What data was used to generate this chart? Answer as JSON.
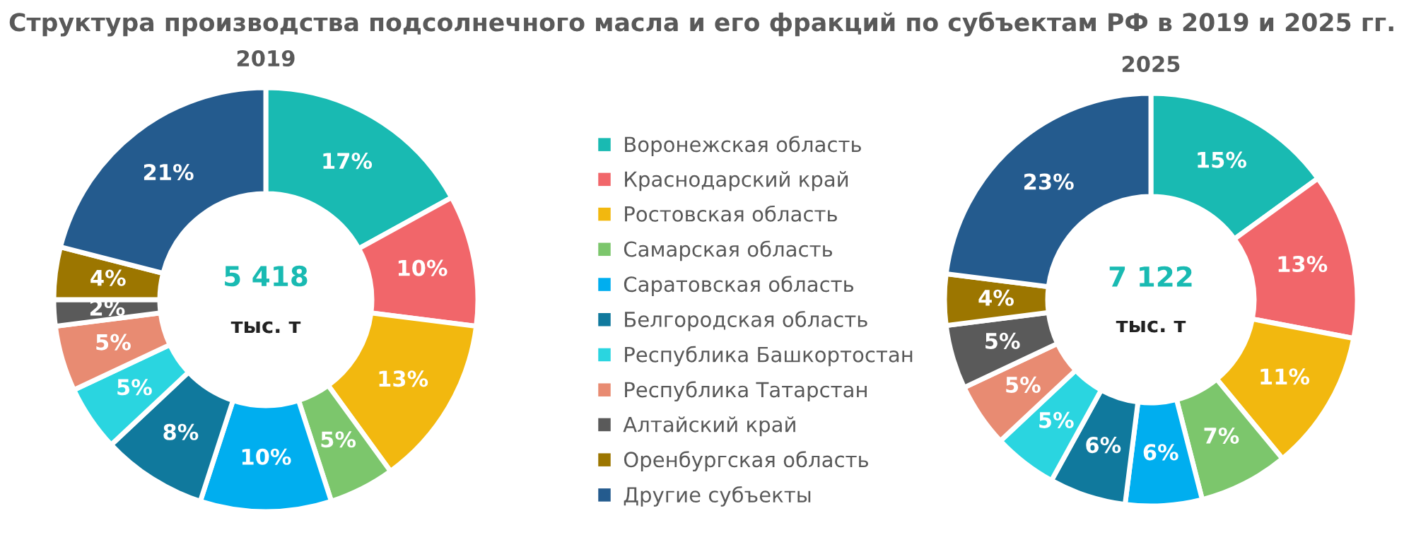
{
  "chart_data": [
    {
      "type": "donut",
      "title": "2019",
      "legend": "right",
      "value_labels": [
        "17%",
        "10%",
        "13%",
        "5%",
        "10%",
        "8%",
        "5%",
        "5%",
        "2%",
        "4%",
        "21%"
      ],
      "annotations": [
        "Структура производства подсолнечного масла и его фракций по субъектам РФ в 2019 и 2025 гг.",
        "5 418",
        "тыс. т"
      ],
      "categories": [
        "Воронежская область",
        "Краснодарский край",
        "Ростовская область",
        "Самарская область",
        "Саратовская область",
        "Белгородская область",
        "Республика Башкортостан",
        "Республика Татарстан",
        "Алтайский край",
        "Оренбургская область",
        "Другие субъекты"
      ],
      "values": [
        17,
        10,
        13,
        5,
        10,
        8,
        5,
        5,
        2,
        4,
        21
      ],
      "colors": [
        "#19bab2",
        "#f1666a",
        "#f2b80f",
        "#7cc66c",
        "#00aeef",
        "#10799d",
        "#2ad5e0",
        "#e88b72",
        "#5a5a5a",
        "#9c7600",
        "#245b8e"
      ]
    },
    {
      "type": "donut",
      "title": "2025",
      "value_labels": [
        "15%",
        "13%",
        "11%",
        "7%",
        "6%",
        "6%",
        "5%",
        "5%",
        "5%",
        "4%",
        "23%"
      ],
      "annotations": [
        "7 122",
        "тыс. т"
      ],
      "values": [
        15,
        13,
        11,
        7,
        6,
        6,
        5,
        5,
        5,
        4,
        23
      ],
      "colors": [
        "#19bab2",
        "#f1666a",
        "#f2b80f",
        "#7cc66c",
        "#00aeef",
        "#10799d",
        "#2ad5e0",
        "#e88b72",
        "#5a5a5a",
        "#9c7600",
        "#245b8e"
      ]
    }
  ]
}
